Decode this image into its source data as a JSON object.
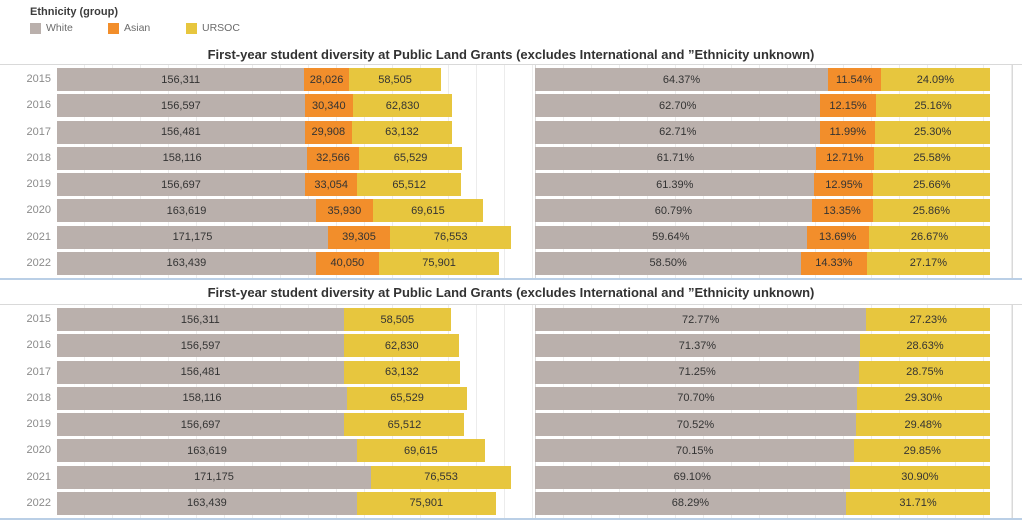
{
  "legend": {
    "title": "Ethnicity (group)",
    "items": [
      {
        "label": "White",
        "color": "#bab0ac"
      },
      {
        "label": "Asian",
        "color": "#f28e2b"
      },
      {
        "label": "URSOC",
        "color": "#e7c63e"
      }
    ]
  },
  "sections": [
    {
      "title": "First-year student diversity at Public Land Grants (excludes International and ”Ethnicity unknown)"
    },
    {
      "title": "First-year student diversity at Public Land Grants (excludes International and ”Ethnicity unknown)"
    }
  ],
  "chart_data": [
    {
      "type": "bar",
      "orientation": "horizontal",
      "stacked": true,
      "panel": "top-left",
      "unit": "count",
      "categories": [
        "2015",
        "2016",
        "2017",
        "2018",
        "2019",
        "2020",
        "2021",
        "2022"
      ],
      "series": [
        {
          "name": "White",
          "color": "#bab0ac",
          "values": [
            156311,
            156597,
            156481,
            158116,
            156697,
            163619,
            171175,
            163439
          ]
        },
        {
          "name": "Asian",
          "color": "#f28e2b",
          "values": [
            28026,
            30340,
            29908,
            32566,
            33054,
            35930,
            39305,
            40050
          ]
        },
        {
          "name": "URSOC",
          "color": "#e7c63e",
          "values": [
            58505,
            62830,
            63132,
            65529,
            65512,
            69615,
            76553,
            75901
          ]
        }
      ],
      "xlim": [
        0,
        301385
      ],
      "grid": true,
      "legend_position": "top-left"
    },
    {
      "type": "bar",
      "orientation": "horizontal",
      "stacked": true,
      "panel": "top-right",
      "unit": "percent",
      "categories": [
        "2015",
        "2016",
        "2017",
        "2018",
        "2019",
        "2020",
        "2021",
        "2022"
      ],
      "series": [
        {
          "name": "White",
          "color": "#bab0ac",
          "values": [
            64.37,
            62.7,
            62.71,
            61.71,
            61.39,
            60.79,
            59.64,
            58.5
          ]
        },
        {
          "name": "Asian",
          "color": "#f28e2b",
          "values": [
            11.54,
            12.15,
            11.99,
            12.71,
            12.95,
            13.35,
            13.69,
            14.33
          ]
        },
        {
          "name": "URSOC",
          "color": "#e7c63e",
          "values": [
            24.09,
            25.16,
            25.3,
            25.58,
            25.66,
            25.86,
            26.67,
            27.17
          ]
        }
      ],
      "xlim": [
        0,
        105
      ],
      "grid": true
    },
    {
      "type": "bar",
      "orientation": "horizontal",
      "stacked": true,
      "panel": "bottom-left",
      "unit": "count",
      "categories": [
        "2015",
        "2016",
        "2017",
        "2018",
        "2019",
        "2020",
        "2021",
        "2022"
      ],
      "series": [
        {
          "name": "White",
          "color": "#bab0ac",
          "values": [
            156311,
            156597,
            156481,
            158116,
            156697,
            163619,
            171175,
            163439
          ]
        },
        {
          "name": "URSOC",
          "color": "#e7c63e",
          "values": [
            58505,
            62830,
            63132,
            65529,
            65512,
            69615,
            76553,
            75901
          ]
        }
      ],
      "xlim": [
        0,
        260114
      ],
      "grid": true
    },
    {
      "type": "bar",
      "orientation": "horizontal",
      "stacked": true,
      "panel": "bottom-right",
      "unit": "percent",
      "categories": [
        "2015",
        "2016",
        "2017",
        "2018",
        "2019",
        "2020",
        "2021",
        "2022"
      ],
      "series": [
        {
          "name": "White",
          "color": "#bab0ac",
          "values": [
            72.77,
            71.37,
            71.25,
            70.7,
            70.52,
            70.15,
            69.1,
            68.29
          ]
        },
        {
          "name": "URSOC",
          "color": "#e7c63e",
          "values": [
            27.23,
            28.63,
            28.75,
            29.3,
            29.48,
            29.85,
            30.9,
            31.71
          ]
        }
      ],
      "xlim": [
        0,
        105
      ],
      "grid": true
    }
  ]
}
